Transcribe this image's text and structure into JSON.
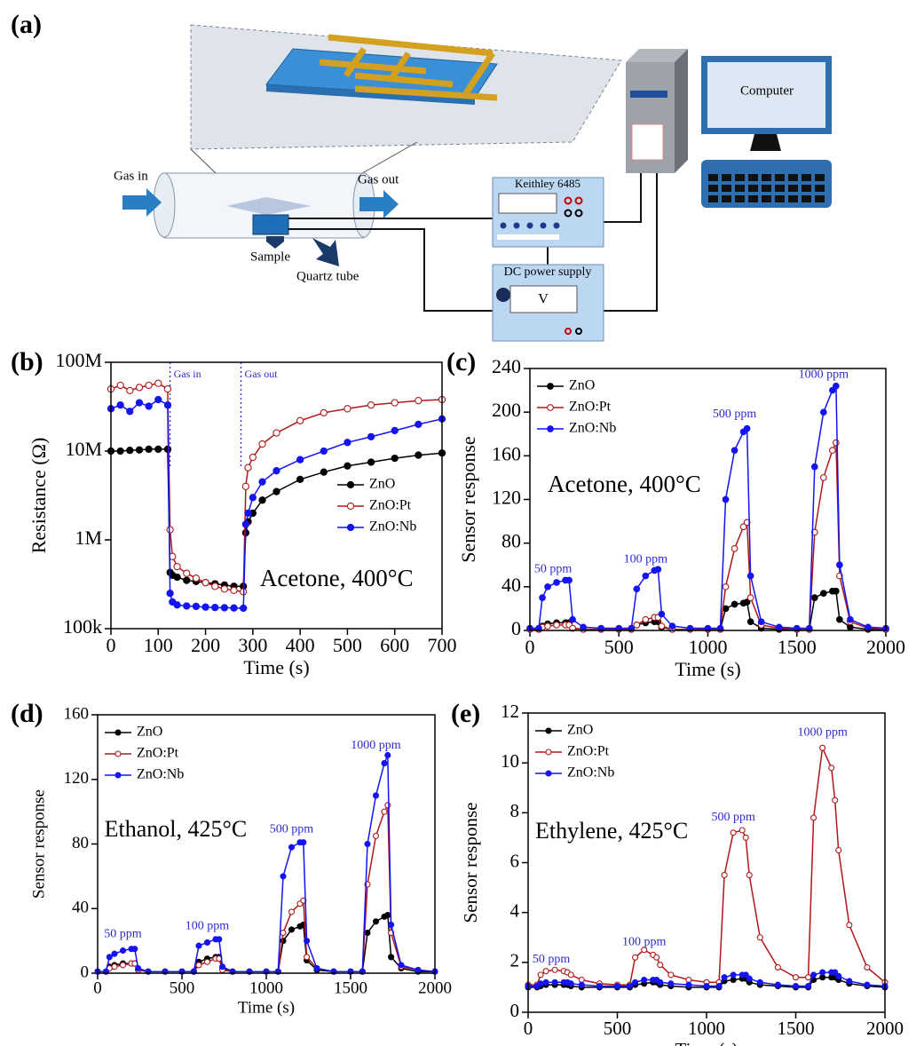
{
  "diagram": {
    "panel_label": "(a)",
    "gas_in": "Gas in",
    "gas_out": "Gas out",
    "sample": "Sample",
    "tube": "Quartz tube",
    "meter": "Keithley 6485",
    "power": "DC power supply",
    "volt": "V",
    "computer": "Computer"
  },
  "chart_data": [
    {
      "type": "line",
      "label": "(b)",
      "x_label": "Time (s)",
      "y_label": "Resistance (Ω)",
      "note": "Acetone, 400°C",
      "yscale": "log",
      "legend": "center right",
      "annotation_color": "#2a2ad0",
      "xlim": [
        0,
        700
      ],
      "xticks": [
        0,
        100,
        200,
        300,
        400,
        500,
        600,
        700
      ],
      "ylim": [
        100000,
        100000000
      ],
      "yticks": [
        {
          "value": 100000,
          "label": "100k"
        },
        {
          "value": 1000000,
          "label": "1M"
        },
        {
          "value": 10000000,
          "label": "10M"
        },
        {
          "value": 100000000,
          "label": "100M"
        }
      ],
      "vlines": [
        {
          "x": 125,
          "label": "Gas in"
        },
        {
          "x": 275,
          "label": "Gas out"
        }
      ],
      "x": [
        0,
        20,
        40,
        60,
        80,
        100,
        120,
        125,
        130,
        140,
        160,
        180,
        200,
        220,
        240,
        260,
        280,
        285,
        290,
        300,
        320,
        350,
        400,
        450,
        500,
        550,
        600,
        650,
        700
      ],
      "series": [
        {
          "name": "ZnO",
          "color": "#000000",
          "marker_fill": "#000000",
          "values": [
            10000000,
            10000000,
            10200000,
            10300000,
            10500000,
            10500000,
            10500000,
            430000,
            400000,
            380000,
            350000,
            340000,
            330000,
            320000,
            310000,
            300000,
            300000,
            1200000,
            1600000,
            2000000,
            2800000,
            3500000,
            4800000,
            5800000,
            6800000,
            7500000,
            8300000,
            9000000,
            9500000
          ]
        },
        {
          "name": "ZnO:Pt",
          "color": "#b01818",
          "marker_fill": "#ffffff",
          "values": [
            50000000,
            55000000,
            48000000,
            52000000,
            55000000,
            58000000,
            50000000,
            1300000,
            650000,
            500000,
            420000,
            370000,
            330000,
            300000,
            280000,
            270000,
            260000,
            4000000,
            6500000,
            8500000,
            12000000,
            16000000,
            22000000,
            27000000,
            30000000,
            33000000,
            35000000,
            37000000,
            38000000
          ]
        },
        {
          "name": "ZnO:Nb",
          "color": "#1414f0",
          "marker_fill": "#1414f0",
          "values": [
            30000000,
            33000000,
            28000000,
            35000000,
            32000000,
            38000000,
            33000000,
            250000,
            200000,
            185000,
            180000,
            178000,
            175000,
            173000,
            172000,
            171000,
            170000,
            1500000,
            2000000,
            3000000,
            4500000,
            6000000,
            8000000,
            10000000,
            12500000,
            14500000,
            17000000,
            20000000,
            23000000
          ]
        }
      ]
    },
    {
      "type": "line",
      "label": "(c)",
      "x_label": "Time (s)",
      "y_label": "Sensor response",
      "note": "Acetone, 400°C",
      "legend": "upper left",
      "annotation_color": "#2a2ad0",
      "xlim": [
        0,
        2000
      ],
      "xticks": [
        0,
        500,
        1000,
        1500,
        2000
      ],
      "ylim": [
        0,
        240
      ],
      "yticks": [
        0,
        40,
        80,
        120,
        160,
        200,
        240
      ],
      "annotations": [
        {
          "text": "50 ppm",
          "x": 130,
          "y": 56
        },
        {
          "text": "100 ppm",
          "x": 650,
          "y": 65
        },
        {
          "text": "500 ppm",
          "x": 1150,
          "y": 198
        },
        {
          "text": "1000 ppm",
          "x": 1650,
          "y": 234
        }
      ],
      "x": [
        0,
        50,
        70,
        100,
        150,
        200,
        220,
        240,
        300,
        400,
        500,
        570,
        600,
        650,
        700,
        720,
        740,
        800,
        900,
        1000,
        1070,
        1100,
        1150,
        1200,
        1220,
        1240,
        1300,
        1400,
        1500,
        1570,
        1600,
        1650,
        1700,
        1720,
        1740,
        1800,
        1900,
        2000
      ],
      "series": [
        {
          "name": "ZnO",
          "color": "#000000",
          "marker_fill": "#000000",
          "values": [
            1,
            1,
            4,
            6,
            7,
            7,
            7,
            2,
            1,
            1,
            1,
            1,
            5,
            7,
            8,
            8,
            3,
            1,
            1,
            1,
            1,
            20,
            24,
            25,
            26,
            8,
            2,
            1,
            1,
            1,
            30,
            34,
            36,
            36,
            10,
            3,
            1,
            1
          ]
        },
        {
          "name": "ZnO:Pt",
          "color": "#b01818",
          "marker_fill": "#ffffff",
          "values": [
            1,
            1,
            3,
            4,
            5,
            5,
            5,
            2,
            1,
            1,
            1,
            1,
            5,
            10,
            12,
            12,
            4,
            1,
            1,
            1,
            1,
            40,
            75,
            95,
            99,
            30,
            5,
            2,
            1,
            1,
            90,
            140,
            165,
            172,
            50,
            8,
            2,
            1
          ]
        },
        {
          "name": "ZnO:Nb",
          "color": "#1414f0",
          "marker_fill": "#1414f0",
          "values": [
            2,
            2,
            30,
            40,
            44,
            46,
            46,
            10,
            3,
            2,
            2,
            2,
            38,
            50,
            55,
            56,
            15,
            4,
            2,
            2,
            2,
            120,
            165,
            182,
            185,
            50,
            8,
            3,
            2,
            2,
            150,
            200,
            220,
            224,
            60,
            10,
            3,
            2
          ]
        }
      ]
    },
    {
      "type": "line",
      "label": "(d)",
      "x_label": "Time (s)",
      "y_label": "Sensor response",
      "note": "Ethanol, 425°C",
      "legend": "upper left",
      "annotation_color": "#2a2ad0",
      "xlim": [
        0,
        2000
      ],
      "xticks": [
        0,
        500,
        1000,
        1500,
        2000
      ],
      "ylim": [
        0,
        160
      ],
      "yticks": [
        0,
        40,
        80,
        120,
        160
      ],
      "annotations": [
        {
          "text": "50 ppm",
          "x": 150,
          "y": 24
        },
        {
          "text": "100 ppm",
          "x": 650,
          "y": 29
        },
        {
          "text": "500 ppm",
          "x": 1150,
          "y": 89
        },
        {
          "text": "1000 ppm",
          "x": 1650,
          "y": 141
        }
      ],
      "x": [
        0,
        50,
        70,
        100,
        150,
        200,
        220,
        240,
        300,
        400,
        500,
        570,
        600,
        650,
        700,
        720,
        740,
        800,
        900,
        1000,
        1070,
        1100,
        1150,
        1200,
        1220,
        1240,
        1300,
        1400,
        1500,
        1570,
        1600,
        1650,
        1700,
        1720,
        1740,
        1800,
        1900,
        2000
      ],
      "series": [
        {
          "name": "ZnO",
          "color": "#000000",
          "marker_fill": "#000000",
          "values": [
            1,
            1,
            4,
            5,
            6,
            6,
            6,
            2,
            1,
            1,
            1,
            1,
            7,
            9,
            10,
            10,
            3,
            1,
            1,
            1,
            1,
            20,
            27,
            29,
            30,
            8,
            2,
            1,
            1,
            1,
            25,
            32,
            35,
            36,
            10,
            3,
            1,
            1
          ]
        },
        {
          "name": "ZnO:Pt",
          "color": "#b01818",
          "marker_fill": "#ffffff",
          "values": [
            1,
            1,
            3,
            4,
            5,
            6,
            6,
            2,
            1,
            1,
            1,
            1,
            5,
            7,
            9,
            9,
            2,
            1,
            1,
            1,
            1,
            25,
            38,
            43,
            45,
            10,
            3,
            1,
            1,
            1,
            55,
            85,
            100,
            104,
            25,
            4,
            2,
            1
          ]
        },
        {
          "name": "ZnO:Nb",
          "color": "#1414f0",
          "marker_fill": "#1414f0",
          "values": [
            1,
            1,
            10,
            12,
            14,
            15,
            15,
            3,
            1,
            1,
            1,
            1,
            17,
            19,
            21,
            21,
            4,
            1,
            1,
            1,
            1,
            60,
            78,
            81,
            81,
            20,
            3,
            1,
            1,
            1,
            80,
            110,
            130,
            135,
            30,
            5,
            2,
            1
          ]
        }
      ]
    },
    {
      "type": "line",
      "label": "(e)",
      "x_label": "Time (s)",
      "y_label": "Sensor response",
      "note": "Ethylene, 425°C",
      "legend": "upper left",
      "annotation_color": "#2a2ad0",
      "xlim": [
        0,
        2000
      ],
      "xticks": [
        0,
        500,
        1000,
        1500,
        2000
      ],
      "ylim": [
        0,
        12
      ],
      "yticks": [
        0,
        2,
        4,
        6,
        8,
        10,
        12
      ],
      "annotations": [
        {
          "text": "50 ppm",
          "x": 130,
          "y": 2.1
        },
        {
          "text": "100 ppm",
          "x": 650,
          "y": 2.8
        },
        {
          "text": "500 ppm",
          "x": 1150,
          "y": 7.8
        },
        {
          "text": "1000 ppm",
          "x": 1650,
          "y": 11.2
        }
      ],
      "x": [
        0,
        50,
        70,
        100,
        150,
        200,
        220,
        240,
        300,
        400,
        500,
        570,
        600,
        650,
        700,
        720,
        740,
        800,
        900,
        1000,
        1070,
        1100,
        1150,
        1200,
        1220,
        1240,
        1300,
        1400,
        1500,
        1570,
        1600,
        1650,
        1700,
        1720,
        1740,
        1800,
        1900,
        2000
      ],
      "series": [
        {
          "name": "ZnO",
          "color": "#000000",
          "marker_fill": "#000000",
          "values": [
            1.0,
            1.0,
            1.05,
            1.1,
            1.1,
            1.1,
            1.1,
            1.05,
            1.0,
            1.0,
            1.0,
            1.0,
            1.1,
            1.15,
            1.2,
            1.2,
            1.1,
            1.05,
            1.0,
            1.0,
            1.0,
            1.25,
            1.3,
            1.35,
            1.35,
            1.2,
            1.1,
            1.05,
            1.0,
            1.0,
            1.3,
            1.4,
            1.4,
            1.4,
            1.3,
            1.15,
            1.05,
            1.0
          ]
        },
        {
          "name": "ZnO:Pt",
          "color": "#b01818",
          "marker_fill": "#ffffff",
          "values": [
            1.1,
            1.1,
            1.5,
            1.65,
            1.7,
            1.65,
            1.6,
            1.5,
            1.3,
            1.15,
            1.1,
            1.1,
            2.2,
            2.5,
            2.3,
            2.2,
            1.9,
            1.5,
            1.3,
            1.2,
            1.2,
            5.5,
            7.2,
            7.3,
            7.0,
            5.5,
            3.0,
            1.8,
            1.4,
            1.4,
            7.8,
            10.6,
            9.8,
            8.5,
            6.5,
            3.5,
            1.8,
            1.2
          ]
        },
        {
          "name": "ZnO:Nb",
          "color": "#1414f0",
          "marker_fill": "#1414f0",
          "values": [
            1.05,
            1.05,
            1.15,
            1.2,
            1.2,
            1.2,
            1.2,
            1.15,
            1.1,
            1.05,
            1.05,
            1.05,
            1.2,
            1.3,
            1.3,
            1.3,
            1.2,
            1.15,
            1.1,
            1.05,
            1.05,
            1.4,
            1.5,
            1.5,
            1.5,
            1.35,
            1.2,
            1.1,
            1.05,
            1.05,
            1.5,
            1.6,
            1.6,
            1.6,
            1.45,
            1.25,
            1.1,
            1.05
          ]
        }
      ]
    }
  ]
}
